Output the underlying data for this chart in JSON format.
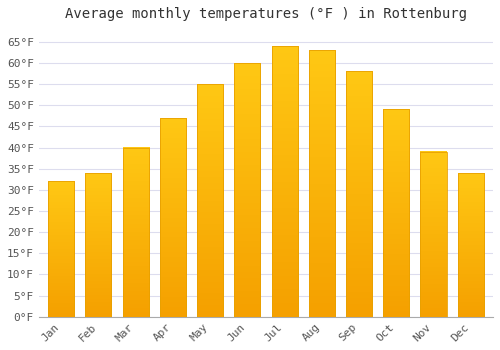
{
  "title": "Average monthly temperatures (°F ) in Rottenburg",
  "months": [
    "Jan",
    "Feb",
    "Mar",
    "Apr",
    "May",
    "Jun",
    "Jul",
    "Aug",
    "Sep",
    "Oct",
    "Nov",
    "Dec"
  ],
  "values": [
    32,
    34,
    40,
    47,
    55,
    60,
    64,
    63,
    58,
    49,
    39,
    34
  ],
  "bar_color_top": "#FFC200",
  "bar_color_bottom": "#F5A000",
  "bar_edge_color": "#E8A000",
  "background_color": "#FFFFFF",
  "plot_bg_color": "#FFFFFF",
  "grid_color": "#DDDDEE",
  "ylim": [
    0,
    68
  ],
  "yticks": [
    0,
    5,
    10,
    15,
    20,
    25,
    30,
    35,
    40,
    45,
    50,
    55,
    60,
    65
  ],
  "title_fontsize": 10,
  "tick_fontsize": 8,
  "font_family": "monospace",
  "bar_width": 0.7
}
